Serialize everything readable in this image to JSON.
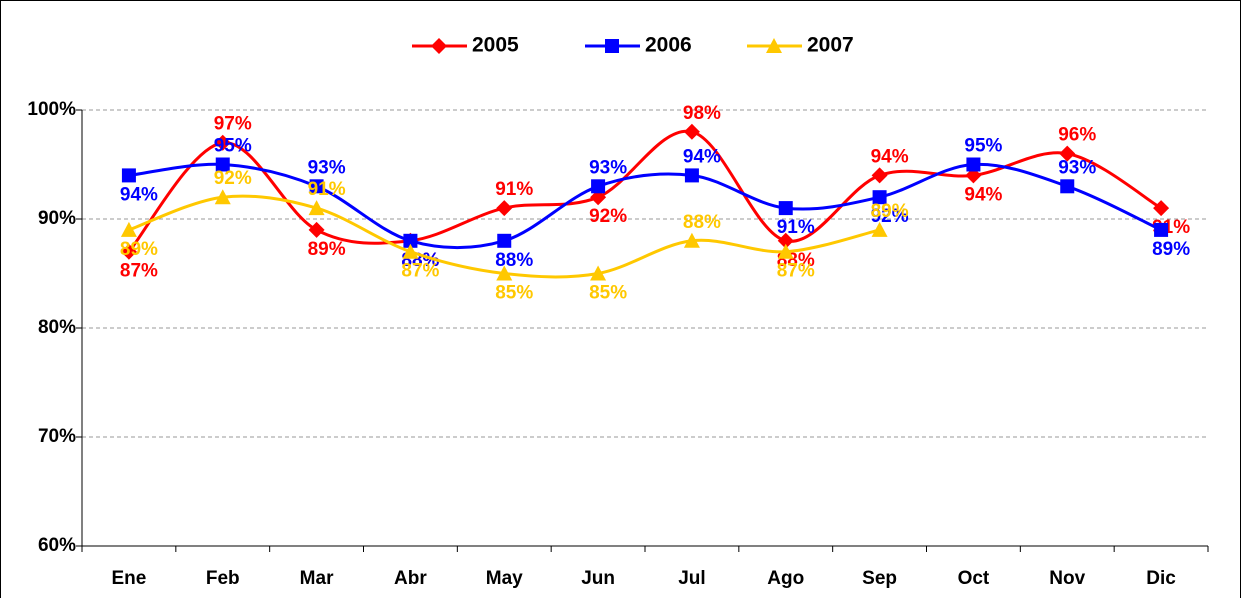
{
  "chart_data": {
    "type": "line",
    "categories": [
      "Ene",
      "Feb",
      "Mar",
      "Abr",
      "May",
      "Jun",
      "Jul",
      "Ago",
      "Sep",
      "Oct",
      "Nov",
      "Dic"
    ],
    "series": [
      {
        "name": "2005",
        "color": "#ff0000",
        "marker": "diamond",
        "values": [
          87,
          97,
          89,
          88,
          91,
          92,
          98,
          88,
          94,
          94,
          96,
          91
        ],
        "value_labels": [
          "87%",
          "97%",
          "89%",
          "88%",
          "91%",
          "92%",
          "98%",
          "88%",
          "94%",
          "94%",
          "96%",
          "91%"
        ]
      },
      {
        "name": "2006",
        "color": "#0000ff",
        "marker": "square",
        "values": [
          94,
          95,
          93,
          88,
          88,
          93,
          94,
          91,
          92,
          95,
          93,
          89
        ],
        "value_labels": [
          "94%",
          "95%",
          "93%",
          "88%",
          "88%",
          "93%",
          "94%",
          "91%",
          "92%",
          "95%",
          "93%",
          "89%"
        ]
      },
      {
        "name": "2007",
        "color": "#ffc800",
        "marker": "triangle",
        "values": [
          89,
          92,
          91,
          87,
          85,
          85,
          88,
          87,
          89,
          null,
          null,
          null
        ],
        "value_labels": [
          "89%",
          "92%",
          "91%",
          "87%",
          "85%",
          "85%",
          "88%",
          "87%",
          "89%",
          null,
          null,
          null
        ]
      }
    ],
    "ylim": [
      60,
      100
    ],
    "yticks": [
      {
        "value": 60,
        "label": "60%"
      },
      {
        "value": 70,
        "label": "70%"
      },
      {
        "value": 80,
        "label": "80%"
      },
      {
        "value": 90,
        "label": "90%"
      },
      {
        "value": 100,
        "label": "100%"
      }
    ],
    "grid": true,
    "smooth": true,
    "legend": "top"
  }
}
